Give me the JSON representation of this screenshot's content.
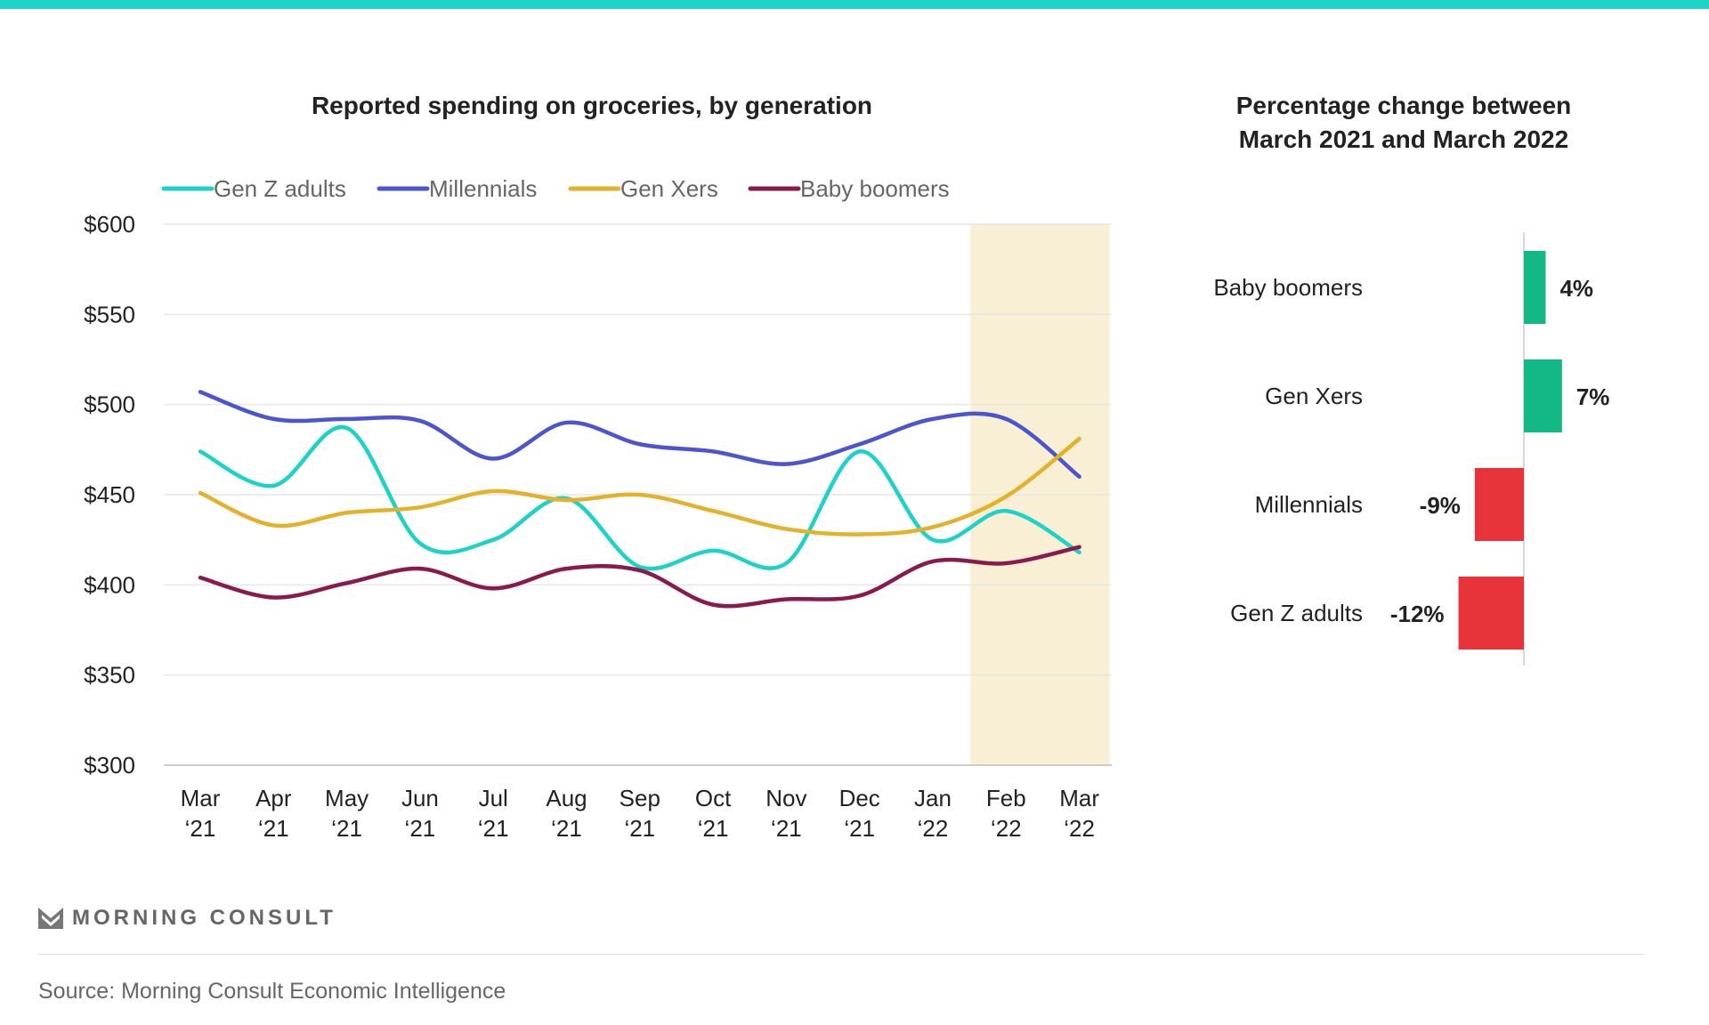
{
  "colors": {
    "accent": "#1dd3c8",
    "highlight": "#f8efd4",
    "positive": "#12b886",
    "negative": "#e8333a"
  },
  "chart_data": [
    {
      "type": "line",
      "title": "Reported spending on groceries, by generation",
      "categories": [
        [
          "Mar",
          "‘21"
        ],
        [
          "Apr",
          "‘21"
        ],
        [
          "May",
          "‘21"
        ],
        [
          "Jun",
          "‘21"
        ],
        [
          "Jul",
          "‘21"
        ],
        [
          "Aug",
          "‘21"
        ],
        [
          "Sep",
          "‘21"
        ],
        [
          "Oct",
          "‘21"
        ],
        [
          "Nov",
          "‘21"
        ],
        [
          "Dec",
          "‘21"
        ],
        [
          "Jan",
          "‘22"
        ],
        [
          "Feb",
          "‘22"
        ],
        [
          "Mar",
          "‘22"
        ]
      ],
      "yticks": [
        "$300",
        "$350",
        "$400",
        "$450",
        "$500",
        "$550",
        "$600"
      ],
      "ylim": [
        300,
        600
      ],
      "grid": true,
      "legend": "top",
      "highlight_range": [
        "Feb ‘22",
        "Mar ‘22"
      ],
      "series": [
        {
          "name": "Gen Z adults",
          "color": "#1dd3c8",
          "values": [
            474,
            455,
            487,
            423,
            425,
            448,
            410,
            419,
            412,
            474,
            425,
            441,
            418
          ]
        },
        {
          "name": "Millennials",
          "color": "#4b55d0",
          "values": [
            507,
            492,
            492,
            491,
            470,
            490,
            478,
            474,
            467,
            478,
            492,
            492,
            460
          ]
        },
        {
          "name": "Gen Xers",
          "color": "#e3b12a",
          "values": [
            451,
            433,
            440,
            443,
            452,
            447,
            450,
            441,
            431,
            428,
            432,
            449,
            481
          ]
        },
        {
          "name": "Baby boomers",
          "color": "#8a1a4e",
          "values": [
            404,
            393,
            401,
            409,
            398,
            409,
            408,
            389,
            392,
            394,
            413,
            412,
            421
          ]
        }
      ]
    },
    {
      "type": "bar",
      "orientation": "horizontal",
      "title": [
        "Percentage change between",
        "March 2021 and March 2022"
      ],
      "categories": [
        "Baby boomers",
        "Gen Xers",
        "Millennials",
        "Gen Z adults"
      ],
      "values": [
        4,
        7,
        -9,
        -12
      ],
      "labels": [
        "4%",
        "7%",
        "-9%",
        "-12%"
      ]
    }
  ],
  "footer": {
    "logo": "MORNING CONSULT",
    "source": "Source: Morning Consult Economic Intelligence"
  }
}
